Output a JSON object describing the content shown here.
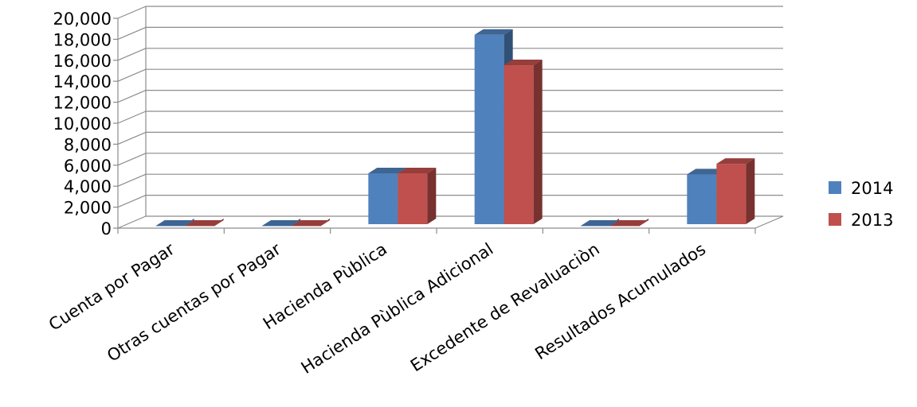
{
  "chart_data": {
    "type": "bar",
    "title": "",
    "xlabel": "",
    "ylabel": "",
    "ylim": [
      0,
      20000
    ],
    "yticks": [
      "0",
      "2,000",
      "4,000",
      "6,000",
      "8,000",
      "10,000",
      "12,000",
      "14,000",
      "16,000",
      "18,000",
      "20,000"
    ],
    "categories": [
      "Cuenta por Pagar",
      "Otras cuentas por Pagar",
      "Hacienda Pùblica",
      "Hacienda Pùblica Adicional",
      "Excedente de Revaluaciòn",
      "Resultados Acumulados"
    ],
    "series": [
      {
        "name": "2014",
        "color": "#4F81BD",
        "values": [
          0,
          0,
          5000,
          18200,
          0,
          4900
        ]
      },
      {
        "name": "2013",
        "color": "#C0504D",
        "values": [
          0,
          0,
          5000,
          15300,
          0,
          5900
        ]
      }
    ],
    "grid": true,
    "legend": "right",
    "style": "3d-clustered-column"
  }
}
